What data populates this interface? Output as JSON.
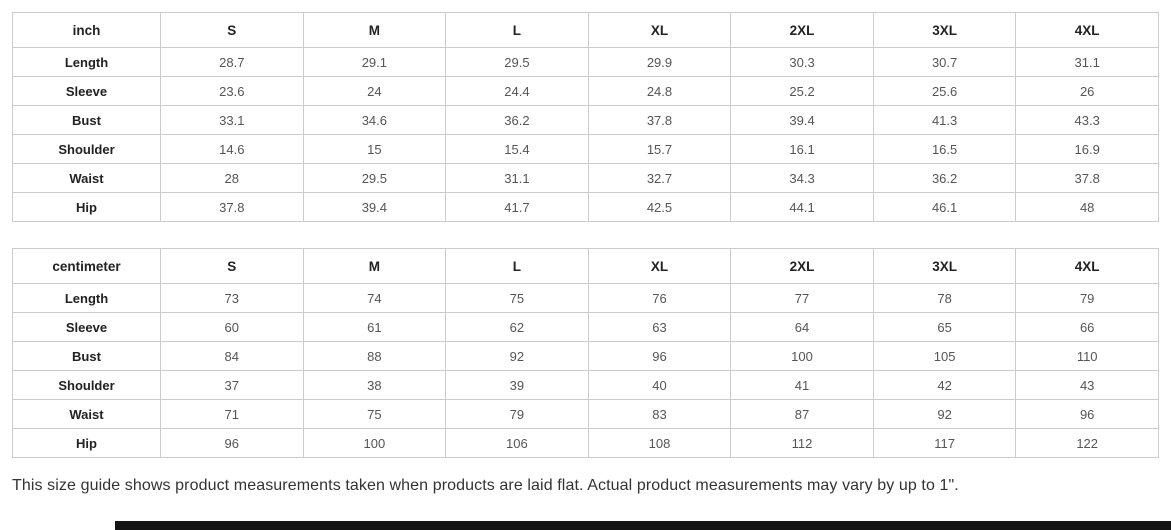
{
  "chart_data": [
    {
      "type": "table",
      "title": "inch",
      "columns": [
        "inch",
        "S",
        "M",
        "L",
        "XL",
        "2XL",
        "3XL",
        "4XL"
      ],
      "rows": [
        [
          "Length",
          "28.7",
          "29.1",
          "29.5",
          "29.9",
          "30.3",
          "30.7",
          "31.1"
        ],
        [
          "Sleeve",
          "23.6",
          "24",
          "24.4",
          "24.8",
          "25.2",
          "25.6",
          "26"
        ],
        [
          "Bust",
          "33.1",
          "34.6",
          "36.2",
          "37.8",
          "39.4",
          "41.3",
          "43.3"
        ],
        [
          "Shoulder",
          "14.6",
          "15",
          "15.4",
          "15.7",
          "16.1",
          "16.5",
          "16.9"
        ],
        [
          "Waist",
          "28",
          "29.5",
          "31.1",
          "32.7",
          "34.3",
          "36.2",
          "37.8"
        ],
        [
          "Hip",
          "37.8",
          "39.4",
          "41.7",
          "42.5",
          "44.1",
          "46.1",
          "48"
        ]
      ]
    },
    {
      "type": "table",
      "title": "centimeter",
      "columns": [
        "centimeter",
        "S",
        "M",
        "L",
        "XL",
        "2XL",
        "3XL",
        "4XL"
      ],
      "rows": [
        [
          "Length",
          "73",
          "74",
          "75",
          "76",
          "77",
          "78",
          "79"
        ],
        [
          "Sleeve",
          "60",
          "61",
          "62",
          "63",
          "64",
          "65",
          "66"
        ],
        [
          "Bust",
          "84",
          "88",
          "92",
          "96",
          "100",
          "105",
          "110"
        ],
        [
          "Shoulder",
          "37",
          "38",
          "39",
          "40",
          "41",
          "42",
          "43"
        ],
        [
          "Waist",
          "71",
          "75",
          "79",
          "83",
          "87",
          "92",
          "96"
        ],
        [
          "Hip",
          "96",
          "100",
          "106",
          "108",
          "112",
          "117",
          "122"
        ]
      ]
    }
  ],
  "footer": {
    "note": "This size guide shows product measurements taken when products are laid flat. Actual product measurements may vary by up to 1\"."
  },
  "colors": {
    "table_border": "#cccccc",
    "header_text": "#222222",
    "value_text": "#555555",
    "note_text": "#333333",
    "bottom_bar": "#151515",
    "background": "#ffffff"
  }
}
